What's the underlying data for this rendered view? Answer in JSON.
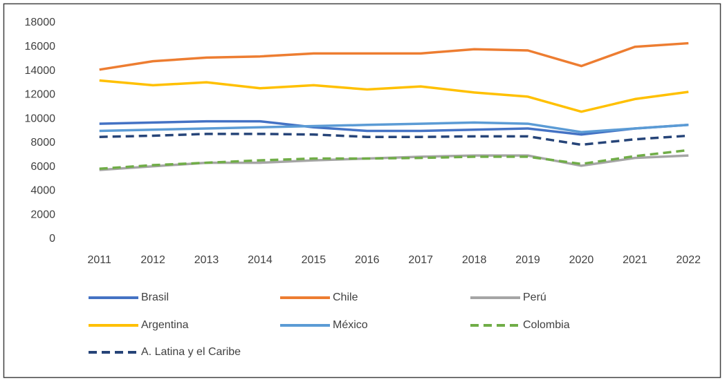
{
  "chart_data": {
    "type": "line",
    "categories": [
      "2011",
      "2012",
      "2013",
      "2014",
      "2015",
      "2016",
      "2017",
      "2018",
      "2019",
      "2020",
      "2021",
      "2022"
    ],
    "ylim": [
      0,
      18000
    ],
    "yticks": [
      0,
      2000,
      4000,
      6000,
      8000,
      10000,
      12000,
      14000,
      16000,
      18000
    ],
    "grid": false,
    "legend": "bottom",
    "series": [
      {
        "name": "Brasil",
        "color": "#4472c4",
        "line_style": "solid",
        "values": [
          9600,
          9700,
          9800,
          9800,
          9300,
          9000,
          9000,
          9100,
          9200,
          8700,
          9200,
          9500
        ]
      },
      {
        "name": "Chile",
        "color": "#ed7d31",
        "line_style": "solid",
        "values": [
          14100,
          14800,
          15100,
          15200,
          15450,
          15450,
          15450,
          15800,
          15700,
          14400,
          16000,
          16300
        ]
      },
      {
        "name": "Perú",
        "color": "#a5a5a5",
        "line_style": "solid",
        "values": [
          5750,
          6050,
          6350,
          6350,
          6550,
          6700,
          6850,
          6950,
          6950,
          6100,
          6750,
          6950
        ]
      },
      {
        "name": "Argentina",
        "color": "#ffc000",
        "line_style": "solid",
        "values": [
          13200,
          12800,
          13050,
          12550,
          12800,
          12450,
          12700,
          12200,
          11850,
          10600,
          11650,
          12250
        ]
      },
      {
        "name": "México",
        "color": "#5b9bd5",
        "line_style": "solid",
        "values": [
          9000,
          9100,
          9200,
          9300,
          9400,
          9500,
          9600,
          9700,
          9600,
          8900,
          9200,
          9500
        ]
      },
      {
        "name": "Colombia",
        "color": "#70ad47",
        "line_style": "dashed",
        "values": [
          5850,
          6150,
          6350,
          6550,
          6700,
          6700,
          6750,
          6850,
          6850,
          6250,
          6900,
          7400
        ]
      },
      {
        "name": "A. Latina y el Caribe",
        "color": "#264478",
        "line_style": "dashed",
        "values": [
          8500,
          8600,
          8750,
          8750,
          8700,
          8500,
          8500,
          8550,
          8550,
          7850,
          8300,
          8600
        ]
      }
    ]
  }
}
